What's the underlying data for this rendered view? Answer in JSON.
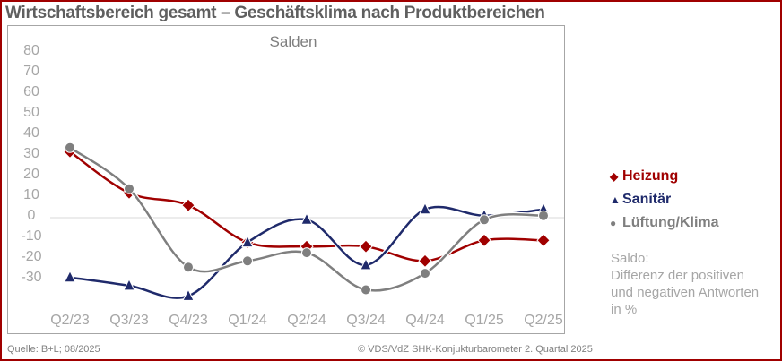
{
  "title": "Wirtschaftsbereich gesamt – Geschäftsklima nach Produktbereichen",
  "chart_data": {
    "type": "line",
    "title": "Salden",
    "categories": [
      "Q2/23",
      "Q3/23",
      "Q4/23",
      "Q1/24",
      "Q2/24",
      "Q3/24",
      "Q4/24",
      "Q1/25",
      "Q2/25"
    ],
    "yticks": [
      80,
      70,
      60,
      50,
      40,
      30,
      20,
      10,
      0,
      -10,
      -20,
      -30
    ],
    "ylim": [
      -45,
      85
    ],
    "series": [
      {
        "name": "Heizung",
        "color": "#a00000",
        "marker": "diamond",
        "values": [
          32,
          12,
          6,
          -12,
          -14,
          -14,
          -21,
          -11,
          -11
        ]
      },
      {
        "name": "Sanitär",
        "color": "#1f2a6b",
        "marker": "triangle",
        "values": [
          -29,
          -33,
          -38,
          -12,
          -1,
          -23,
          4,
          1,
          4
        ]
      },
      {
        "name": "Lüftung/Klima",
        "color": "#7f7f7f",
        "marker": "circle",
        "values": [
          34,
          14,
          -24,
          -21,
          -17,
          -35,
          -27,
          -1,
          1
        ]
      }
    ]
  },
  "legend_markers": {
    "diamond": "◆",
    "triangle": "▲",
    "circle": "●"
  },
  "note": {
    "line1": "Saldo:",
    "line2": "Differenz der positiven",
    "line3": "und negativen Antworten",
    "line4": "in %"
  },
  "source": "Quelle: B+L; 08/2025",
  "copyright": "© VDS/VdZ SHK-Konjukturbarometer 2. Quartal 2025"
}
